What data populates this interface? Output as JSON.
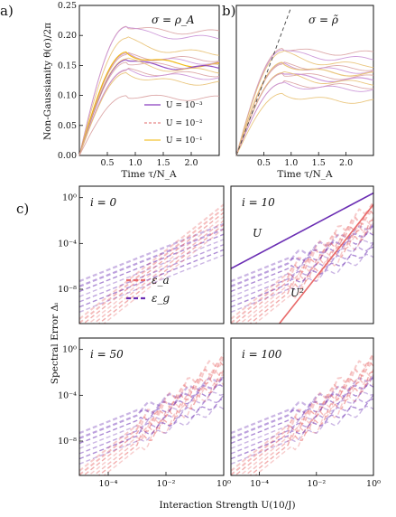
{
  "figure": {
    "panel_a": "a)",
    "panel_b": "b)",
    "panel_c": "c)",
    "a_ylabel": "Non-Gaussianity  θ(σ)/2π",
    "a_xlabel": "Time  τ/N_A",
    "b_xlabel": "Time  τ/N_A",
    "c_ylabel": "Spectral Error  Δᵢ",
    "c_xlabel": "Interaction Strength  U(10/J)",
    "a_ann": "σ = ρ_A",
    "b_ann": "σ = ρ̃",
    "c_ann_U": "U",
    "c_ann_U2": "U²"
  },
  "chart_data": [
    {
      "id": "a",
      "type": "line",
      "annotation": "σ = ρ_A",
      "xlabel": "Time  τ/N_A",
      "ylabel": "Non-Gaussianity  θ(σ)/2π",
      "xlim": [
        0,
        2.5
      ],
      "ylim": [
        0,
        0.25
      ],
      "xticks": [
        "0.5",
        "1.0",
        "1.5",
        "2.0"
      ],
      "yticks": [
        "0.00",
        "0.05",
        "0.10",
        "0.15",
        "0.20",
        "0.25"
      ],
      "legend": [
        {
          "label": "U = 10⁻³",
          "color": "#8a3fbf",
          "style": "solid"
        },
        {
          "label": "U = 10⁻²",
          "color": "#e06868",
          "style": "dashed"
        },
        {
          "label": "U = 10⁻¹",
          "color": "#f0b400",
          "style": "solid"
        }
      ],
      "series_colors": [
        "#d9a0a0",
        "#c98fd6",
        "#e8c070"
      ],
      "plateaus": [
        0.205,
        0.195,
        0.17,
        0.16,
        0.155,
        0.15,
        0.148,
        0.145,
        0.14,
        0.135,
        0.13,
        0.12,
        0.095
      ]
    },
    {
      "id": "b",
      "type": "line",
      "annotation": "σ = ρ̃",
      "xlabel": "Time  τ/N_A",
      "xlim": [
        0,
        2.5
      ],
      "ylim": [
        0,
        0.25
      ],
      "xticks": [
        "0.5",
        "1.0",
        "1.5",
        "2.0"
      ],
      "plateaus": [
        0.17,
        0.16,
        0.15,
        0.145,
        0.14,
        0.135,
        0.13,
        0.125,
        0.12,
        0.115,
        0.11,
        0.09
      ]
    },
    {
      "id": "c",
      "type": "line",
      "xlabel": "Interaction Strength  U(10/J)",
      "ylabel": "Spectral Error  Δᵢ",
      "xscale": "log",
      "yscale": "log",
      "xlim": [
        1e-05,
        1
      ],
      "ylim": [
        1e-11,
        10
      ],
      "xticks": [
        "10⁻⁴",
        "10⁻²",
        "10⁰"
      ],
      "yticks": [
        "10⁰",
        "10⁻⁴",
        "10⁻⁸"
      ],
      "legend": [
        {
          "label": "ε_a",
          "color": "#e86a6a",
          "style": "dashed"
        },
        {
          "label": "ε_g",
          "color": "#6a2db3",
          "style": "dashed"
        }
      ],
      "subplots": [
        {
          "label": "i = 0"
        },
        {
          "label": "i = 10"
        },
        {
          "label": "i = 50"
        },
        {
          "label": "i = 100"
        }
      ]
    }
  ]
}
